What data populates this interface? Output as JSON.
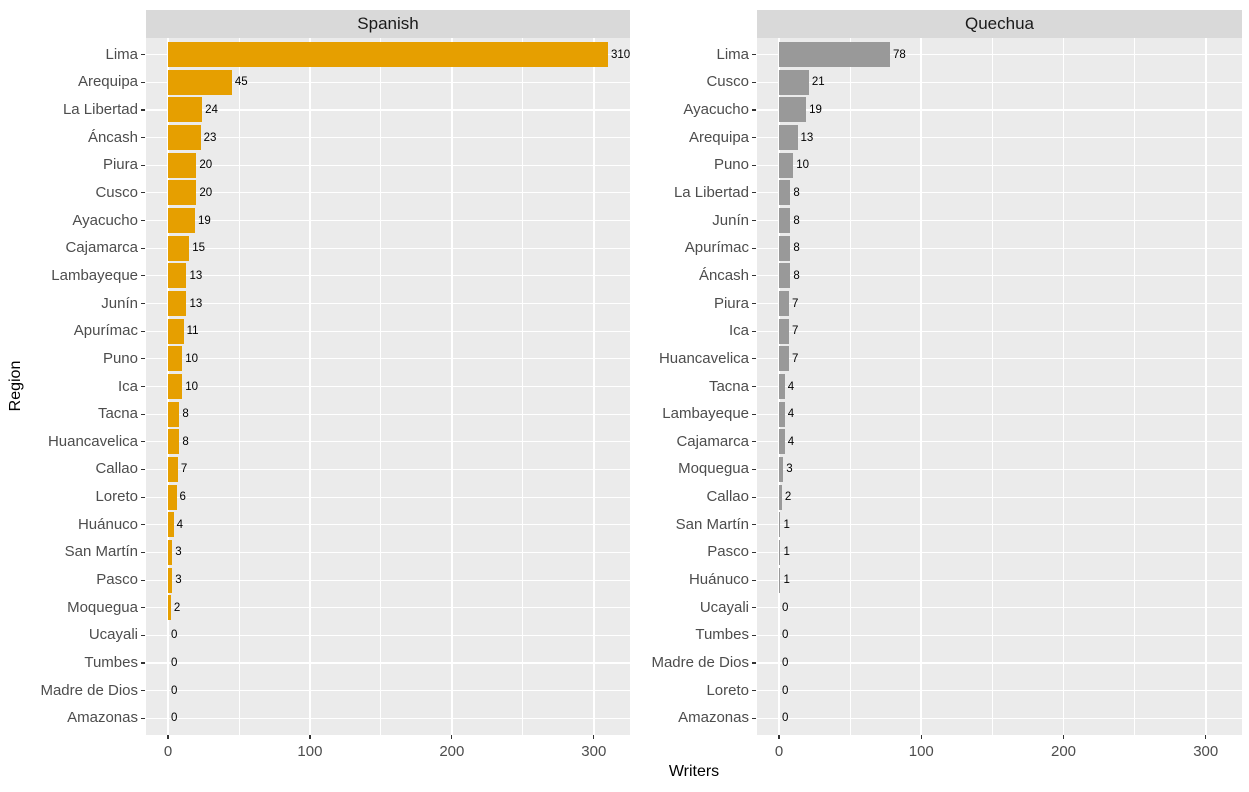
{
  "chart_data": {
    "type": "bar",
    "orientation": "horizontal",
    "xlabel": "Writers",
    "ylabel": "Region",
    "xlim": [
      -15.5,
      325.5
    ],
    "xticks": [
      0,
      100,
      200,
      300
    ],
    "xminor_ticks": [
      50,
      150,
      250
    ],
    "grid": "on",
    "legend": "none",
    "facets": [
      {
        "title": "Spanish",
        "bar_color": "#E69F00",
        "categories": [
          "Lima",
          "Arequipa",
          "La Libertad",
          "Áncash",
          "Piura",
          "Cusco",
          "Ayacucho",
          "Cajamarca",
          "Lambayeque",
          "Junín",
          "Apurímac",
          "Puno",
          "Ica",
          "Tacna",
          "Huancavelica",
          "Callao",
          "Loreto",
          "Huánuco",
          "San Martín",
          "Pasco",
          "Moquegua",
          "Ucayali",
          "Tumbes",
          "Madre de Dios",
          "Amazonas"
        ],
        "values": [
          310,
          45,
          24,
          23,
          20,
          20,
          19,
          15,
          13,
          13,
          11,
          10,
          10,
          8,
          8,
          7,
          6,
          4,
          3,
          3,
          2,
          0,
          0,
          0,
          0
        ]
      },
      {
        "title": "Quechua",
        "bar_color": "#999999",
        "categories": [
          "Lima",
          "Cusco",
          "Ayacucho",
          "Arequipa",
          "Puno",
          "La Libertad",
          "Junín",
          "Apurímac",
          "Áncash",
          "Piura",
          "Ica",
          "Huancavelica",
          "Tacna",
          "Lambayeque",
          "Cajamarca",
          "Moquegua",
          "Callao",
          "San Martín",
          "Pasco",
          "Huánuco",
          "Ucayali",
          "Tumbes",
          "Madre de Dios",
          "Loreto",
          "Amazonas"
        ],
        "values": [
          78,
          21,
          19,
          13,
          10,
          8,
          8,
          8,
          8,
          7,
          7,
          7,
          4,
          4,
          4,
          3,
          2,
          1,
          1,
          1,
          0,
          0,
          0,
          0,
          0
        ]
      }
    ],
    "colors": {
      "panel_background": "#EBEBEB",
      "strip_background": "#D9D9D9",
      "gridline": "#FFFFFF",
      "axis_text": "#4D4D4D",
      "strip_text": "#1A1A1A",
      "tick_mark": "#333333",
      "value_label": "#000000"
    }
  }
}
